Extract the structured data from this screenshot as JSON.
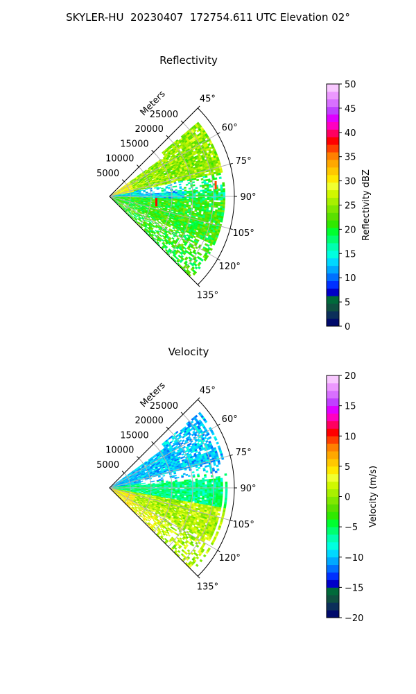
{
  "figure_title": "SKYLER-HU  20230407  172754.611 UTC Elevation 02°",
  "chart_data": [
    {
      "type": "heatmap",
      "subtype": "radar-ppi-sector",
      "title": "Reflectivity",
      "range_axis_label": "Meters",
      "range_ticks": [
        "5000",
        "10000",
        "15000",
        "20000",
        "25000"
      ],
      "range_tick_values": [
        5000,
        10000,
        15000,
        20000,
        25000
      ],
      "range_max": 30000,
      "azimuth_range_deg": [
        45,
        135
      ],
      "azimuth_ticks": [
        "45°",
        "60°",
        "75°",
        "90°",
        "105°",
        "120°",
        "135°"
      ],
      "azimuth_tick_values": [
        45,
        60,
        75,
        90,
        105,
        120,
        135
      ],
      "grid": true,
      "colorbar": {
        "label": "Reflectivity dBZ",
        "min": 0,
        "max": 50,
        "ticks": [
          "0",
          "5",
          "10",
          "15",
          "20",
          "25",
          "30",
          "35",
          "40",
          "45",
          "50"
        ],
        "tick_values": [
          0,
          5,
          10,
          15,
          20,
          25,
          30,
          35,
          40,
          45,
          50
        ],
        "colors": [
          "#000a6b",
          "#0c2f5a",
          "#0f5040",
          "#006a3a",
          "#0000c8",
          "#0030ff",
          "#0070ff",
          "#00a8ff",
          "#00d8ff",
          "#00ffe0",
          "#00ffb0",
          "#00ff70",
          "#00ff30",
          "#30e800",
          "#5ae000",
          "#80e800",
          "#a8f000",
          "#d0f800",
          "#f0ff30",
          "#ffe800",
          "#ffc800",
          "#ffa800",
          "#ff8000",
          "#ff4000",
          "#ff0000",
          "#ff0060",
          "#ff00c0",
          "#e000ff",
          "#c040ff",
          "#d870ff",
          "#ec98ff",
          "#f8c8ff"
        ]
      },
      "field_values": {
        "background": 20,
        "north_band": 25,
        "center_band": 14,
        "south_band": 21,
        "near_origin": 29,
        "hotspots": [
          36,
          38
        ],
        "data_extent_m": [
          0,
          27500
        ]
      }
    },
    {
      "type": "heatmap",
      "subtype": "radar-ppi-sector",
      "title": "Velocity",
      "range_axis_label": "Meters",
      "range_ticks": [
        "5000",
        "10000",
        "15000",
        "20000",
        "25000"
      ],
      "range_tick_values": [
        5000,
        10000,
        15000,
        20000,
        25000
      ],
      "range_max": 30000,
      "azimuth_range_deg": [
        45,
        135
      ],
      "azimuth_ticks": [
        "45°",
        "60°",
        "75°",
        "90°",
        "105°",
        "120°",
        "135°"
      ],
      "azimuth_tick_values": [
        45,
        60,
        75,
        90,
        105,
        120,
        135
      ],
      "grid": true,
      "colorbar": {
        "label": "Velocity (m/s)",
        "min": -20,
        "max": 20,
        "ticks": [
          "−20",
          "−15",
          "−10",
          "−5",
          "0",
          "5",
          "10",
          "15",
          "20"
        ],
        "tick_values": [
          -20,
          -15,
          -10,
          -5,
          0,
          5,
          10,
          15,
          20
        ],
        "colors": [
          "#000a6b",
          "#0c2f5a",
          "#0f5040",
          "#006a3a",
          "#0000c8",
          "#0030ff",
          "#0070ff",
          "#00a8ff",
          "#00d8ff",
          "#00ffe0",
          "#00ffb0",
          "#00ff70",
          "#00ff30",
          "#30e800",
          "#5ae000",
          "#80e800",
          "#a8f000",
          "#d0f800",
          "#f0ff30",
          "#ffe800",
          "#ffc800",
          "#ffa800",
          "#ff8000",
          "#ff4000",
          "#ff0000",
          "#ff0060",
          "#ff00c0",
          "#e000ff",
          "#c040ff",
          "#d870ff",
          "#ec98ff",
          "#f8c8ff"
        ]
      },
      "field_values": {
        "north_band": -10,
        "center_band": -6,
        "south_band": 1,
        "near_origin": 4,
        "data_extent_m": [
          0,
          27500
        ]
      }
    }
  ]
}
